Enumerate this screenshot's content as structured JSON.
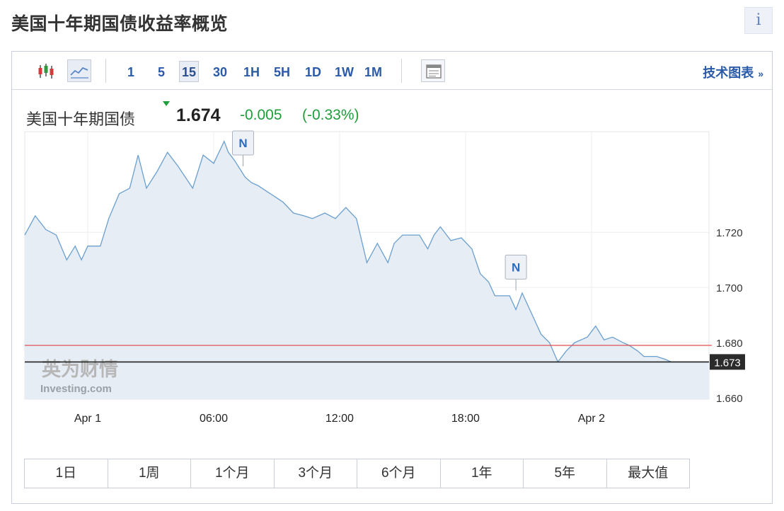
{
  "page": {
    "title": "美国十年期国债收益率概览",
    "info_label": "i"
  },
  "toolbar": {
    "chart_types": [
      {
        "icon": "candlestick-icon",
        "active": false
      },
      {
        "icon": "line-chart-icon",
        "active": true
      }
    ],
    "timeframes": [
      {
        "label": "1",
        "active": false
      },
      {
        "label": "5",
        "active": false
      },
      {
        "label": "15",
        "active": true
      },
      {
        "label": "30",
        "active": false
      },
      {
        "label": "1H",
        "active": false
      },
      {
        "label": "5H",
        "active": false
      },
      {
        "label": "1D",
        "active": false
      },
      {
        "label": "1W",
        "active": false
      },
      {
        "label": "1M",
        "active": false
      }
    ],
    "calendar_icon": "calendar-icon",
    "tech_chart_label": "技术图表",
    "tech_chart_arrow": "»"
  },
  "quote": {
    "name": "美国十年期国债",
    "price": "1.674",
    "change": "-0.005",
    "change_pct": "(-0.33%)"
  },
  "watermark": {
    "cn": "英为财情",
    "en": "Investing.com"
  },
  "news_marker_label": "N",
  "ranges": [
    "1日",
    "1周",
    "1个月",
    "3个月",
    "6个月",
    "1年",
    "5年",
    "最大值"
  ],
  "colors": {
    "line": "#6a9fcf",
    "area": "#e6edf5",
    "positive": "#1e9e3a",
    "ref_line": "#e05050",
    "last_line": "#222222",
    "link": "#2a5aa8"
  },
  "chart_data": {
    "type": "area",
    "title": "",
    "xlabel": "",
    "ylabel": "",
    "x_ticks": [
      {
        "label": "Apr 1",
        "t": 0
      },
      {
        "label": "06:00",
        "t": 6
      },
      {
        "label": "12:00",
        "t": 12
      },
      {
        "label": "18:00",
        "t": 18
      },
      {
        "label": "Apr 2",
        "t": 24
      }
    ],
    "xlim": [
      -3,
      29.6
    ],
    "y_ticks": [
      "1.660",
      "1.680",
      "1.700",
      "1.720"
    ],
    "ylim": [
      1.6595,
      1.7565
    ],
    "reference_line": 1.679,
    "last_value": 1.673,
    "last_value_label": "1.673",
    "news_markers": [
      {
        "t": 7.4,
        "y": 1.7465
      },
      {
        "t": 20.4,
        "y": 1.7015
      }
    ],
    "series": [
      {
        "x": [
          -3,
          -2.5,
          -2,
          -1.5,
          -1,
          -0.6,
          -0.3,
          0,
          0.3,
          0.6,
          1,
          1.5,
          2,
          2.4,
          2.8,
          3.3,
          3.8,
          4.3,
          5,
          5.5,
          6,
          6.5,
          6.7,
          7,
          7.5,
          7.8,
          8.1,
          8.5,
          8.9,
          9.3,
          9.8,
          10.3,
          10.7,
          11.3,
          11.8,
          12.3,
          12.8,
          13.3,
          13.8,
          14.3,
          14.6,
          15,
          15.3,
          15.8,
          16.2,
          16.5,
          16.8,
          17.3,
          17.8,
          18.3,
          18.7,
          19.1,
          19.4,
          19.8,
          20.1,
          20.4,
          20.7,
          21,
          21.3,
          21.6,
          22,
          22.4,
          22.8,
          23.2,
          23.5,
          23.8,
          24.2,
          24.6,
          25,
          25.5,
          25.8,
          26.2,
          26.5,
          26.8,
          27.1,
          27.5,
          27.8,
          28.1,
          28.4,
          28.7,
          29,
          29.3,
          29.6
        ],
        "y": [
          1.719,
          1.726,
          1.721,
          1.719,
          1.71,
          1.715,
          1.71,
          1.715,
          1.715,
          1.715,
          1.725,
          1.734,
          1.736,
          1.748,
          1.736,
          1.742,
          1.749,
          1.744,
          1.736,
          1.748,
          1.745,
          1.753,
          1.749,
          1.746,
          1.74,
          1.738,
          1.737,
          1.735,
          1.733,
          1.731,
          1.727,
          1.726,
          1.725,
          1.727,
          1.725,
          1.729,
          1.725,
          1.709,
          1.716,
          1.709,
          1.716,
          1.719,
          1.719,
          1.719,
          1.714,
          1.719,
          1.722,
          1.717,
          1.718,
          1.714,
          1.705,
          1.702,
          1.697,
          1.697,
          1.697,
          1.692,
          1.698,
          1.693,
          1.688,
          1.683,
          1.68,
          1.673,
          1.677,
          1.68,
          1.681,
          1.682,
          1.686,
          1.681,
          1.682,
          1.68,
          1.679,
          1.677,
          1.675,
          1.675,
          1.675,
          1.674,
          1.673,
          1.673,
          1.673,
          1.673,
          1.673,
          1.673,
          1.673
        ]
      }
    ]
  }
}
